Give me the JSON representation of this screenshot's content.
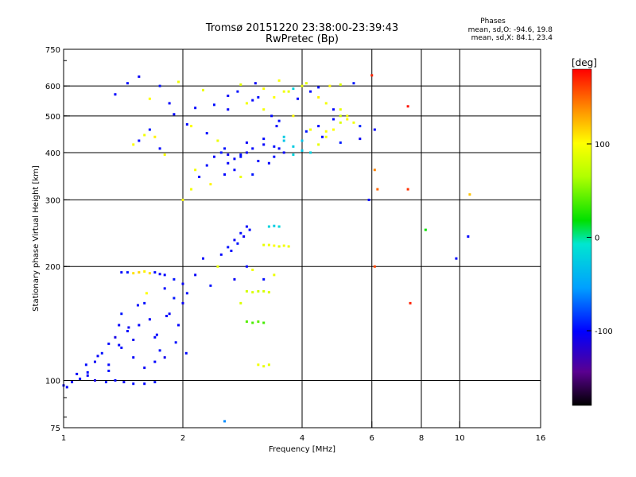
{
  "chart_data": {
    "type": "scatter",
    "title": "Tromsø 20151220 23:38:00-23:39:43",
    "subtitle": "RwPretec (Bp)",
    "xlabel": "Frequency [MHz]",
    "ylabel": "Stationary phase Virtual Height [km]",
    "x_scale": "log",
    "y_scale": "log",
    "xlim": [
      1,
      16
    ],
    "ylim": [
      75,
      750
    ],
    "x_ticks": [
      "1",
      "2",
      "4",
      "6",
      "8",
      "10",
      "16"
    ],
    "x_tick_values": [
      1,
      2,
      4,
      6,
      8,
      10,
      16
    ],
    "x_grid_values": [
      2,
      4,
      6,
      8,
      10
    ],
    "y_ticks": [
      "75",
      "100",
      "200",
      "300",
      "400",
      "500",
      "600",
      "750"
    ],
    "y_tick_values": [
      75,
      100,
      200,
      300,
      400,
      500,
      600,
      750
    ],
    "y_grid_values": [
      100,
      200,
      300,
      400,
      500,
      600
    ],
    "grid": true,
    "stats": {
      "heading": "Phases",
      "line_o": "mean, sd,O: -94.6, 19.8",
      "line_x": "mean, sd,X:  84.1, 23.4"
    },
    "colorbar": {
      "label": "[deg]",
      "min": -180,
      "max": 180,
      "ticks": [
        "100",
        "0",
        "-100"
      ],
      "tick_values": [
        100,
        0,
        -100
      ]
    },
    "series": [
      {
        "name": "",
        "x": [
          1.0,
          1.05,
          1.1,
          1.15,
          1.2,
          1.28,
          1.35,
          1.42,
          1.5,
          1.6,
          1.7
        ],
        "y": [
          97,
          99,
          101,
          103,
          100,
          99,
          100,
          99,
          98,
          98,
          99
        ],
        "phase": [
          -100,
          -105,
          -98,
          -102,
          -110,
          -95,
          -100,
          -104,
          -98,
          -100,
          -96
        ]
      },
      {
        "name": "",
        "x": [
          1.15,
          1.2,
          1.25,
          1.3,
          1.35,
          1.38,
          1.4,
          1.45,
          1.5,
          1.55,
          1.6,
          1.65,
          1.7,
          1.75,
          1.8,
          1.3,
          1.4,
          1.5,
          1.6,
          1.7
        ],
        "y": [
          105,
          112,
          118,
          125,
          130,
          140,
          150,
          135,
          128,
          140,
          160,
          145,
          130,
          120,
          115,
          110,
          122,
          115,
          108,
          112
        ],
        "phase": [
          -98,
          -104,
          -96,
          -100,
          -110,
          -102,
          -95,
          -99,
          -105,
          -101,
          -97,
          -103,
          -100,
          -96,
          -108,
          -100,
          -98,
          -102,
          -104,
          -100
        ]
      },
      {
        "name": "",
        "x": [
          1.4,
          1.45,
          1.5,
          1.55,
          1.6,
          1.65,
          1.7,
          1.75,
          1.8,
          1.9,
          2.0
        ],
        "y": [
          193,
          193,
          192,
          193,
          194,
          192,
          193,
          191,
          190,
          185,
          180
        ],
        "phase": [
          -100,
          -95,
          110,
          115,
          105,
          112,
          -98,
          -102,
          -100,
          -96,
          -104
        ]
      },
      {
        "name": "",
        "x": [
          1.8,
          1.9,
          2.0,
          2.05,
          1.85,
          1.95
        ],
        "y": [
          175,
          165,
          160,
          170,
          150,
          140
        ],
        "phase": [
          -100,
          -95,
          -105,
          -98,
          -102,
          -100
        ]
      },
      {
        "name": "",
        "x": [
          2.5,
          2.6,
          2.7,
          2.8,
          2.9,
          2.65,
          2.75,
          2.85,
          2.95
        ],
        "y": [
          215,
          225,
          235,
          245,
          255,
          220,
          230,
          240,
          250
        ],
        "phase": [
          -100,
          -96,
          -104,
          -98,
          -102,
          -100,
          -95,
          -105,
          -99
        ]
      },
      {
        "name": "",
        "x": [
          3.2,
          3.3,
          3.4,
          3.5,
          3.6,
          3.7,
          3.3,
          3.4,
          3.5
        ],
        "y": [
          228,
          228,
          227,
          226,
          227,
          226,
          255,
          256,
          255
        ],
        "phase": [
          90,
          95,
          100,
          88,
          96,
          92,
          -20,
          -25,
          -18
        ]
      },
      {
        "name": "",
        "x": [
          2.9,
          3.0,
          3.1,
          3.2,
          3.3,
          2.9,
          3.0,
          3.1,
          3.2,
          3.1,
          3.2,
          3.3
        ],
        "y": [
          172,
          171,
          172,
          172,
          171,
          143,
          142,
          143,
          142,
          110,
          109,
          110
        ],
        "phase": [
          80,
          85,
          78,
          82,
          84,
          40,
          38,
          42,
          36,
          95,
          90,
          88
        ]
      },
      {
        "name": "",
        "x": [
          1.5,
          1.55,
          1.6,
          1.65,
          1.7,
          1.75,
          1.8
        ],
        "y": [
          420,
          430,
          445,
          460,
          440,
          410,
          395
        ],
        "phase": [
          100,
          -100,
          95,
          -95,
          105,
          -100,
          98
        ]
      },
      {
        "name": "",
        "x": [
          2.0,
          2.1,
          2.2,
          2.3,
          2.4,
          2.5,
          2.6,
          2.7,
          2.8,
          2.9,
          3.0,
          3.2,
          3.4,
          3.6
        ],
        "y": [
          300,
          320,
          345,
          370,
          390,
          400,
          395,
          385,
          390,
          400,
          410,
          420,
          415,
          400
        ],
        "phase": [
          100,
          95,
          -100,
          -98,
          -102,
          -95,
          -105,
          -100,
          -96,
          -104,
          -99,
          -101,
          -97,
          -103
        ]
      },
      {
        "name": "",
        "x": [
          3.4,
          3.6,
          3.8,
          4.0,
          4.2,
          4.4,
          4.6,
          4.8,
          5.0,
          5.2,
          5.4,
          5.6
        ],
        "y": [
          560,
          580,
          590,
          600,
          580,
          560,
          540,
          520,
          500,
          490,
          480,
          470
        ],
        "phase": [
          100,
          95,
          -20,
          90,
          -98,
          105,
          96,
          -100,
          80,
          102,
          94,
          -90
        ]
      },
      {
        "name": "",
        "x": [
          3.6,
          3.8,
          4.0,
          4.2,
          4.4,
          4.6,
          4.8,
          5.0,
          5.2
        ],
        "y": [
          430,
          415,
          405,
          400,
          420,
          440,
          460,
          480,
          500
        ],
        "phase": [
          -30,
          -25,
          -28,
          -22,
          90,
          95,
          100,
          85,
          92
        ]
      },
      {
        "name": "",
        "x": [
          6.0,
          6.1,
          6.1,
          6.2,
          6.1,
          7.4,
          7.4,
          7.5,
          8.2,
          10.5,
          9.8,
          10.6
        ],
        "y": [
          640,
          460,
          360,
          320,
          200,
          530,
          320,
          160,
          250,
          240,
          210,
          310
        ],
        "phase": [
          170,
          -100,
          140,
          150,
          160,
          175,
          165,
          170,
          20,
          -100,
          -100,
          120
        ]
      },
      {
        "name": "",
        "x": [
          1.02,
          1.08,
          1.14,
          1.22,
          1.3,
          1.38,
          1.46,
          1.54,
          1.62,
          1.72,
          1.82,
          1.92,
          2.04,
          2.15,
          2.25,
          2.35,
          2.45,
          2.55,
          2.7,
          2.8,
          2.9,
          3.0,
          3.2,
          3.4
        ],
        "y": [
          96,
          104,
          110,
          116,
          106,
          124,
          138,
          158,
          170,
          132,
          148,
          126,
          118,
          190,
          210,
          178,
          200,
          78,
          185,
          160,
          200,
          196,
          185,
          190
        ],
        "phase": [
          -100,
          -104,
          -98,
          -102,
          -96,
          -100,
          -105,
          -98,
          100,
          -100,
          -102,
          -97,
          -99,
          -103,
          -101,
          -96,
          90,
          -60,
          -104,
          85,
          -100,
          95,
          -98,
          92
        ]
      },
      {
        "name": "",
        "x": [
          1.9,
          2.1,
          2.3,
          2.45,
          2.6,
          2.75,
          2.9,
          3.05,
          3.2,
          3.35,
          3.5,
          3.7,
          3.9,
          4.1,
          4.4,
          4.7,
          5.0,
          5.4,
          2.15,
          2.35,
          2.55,
          2.8,
          3.1,
          3.45
        ],
        "y": [
          505,
          470,
          450,
          430,
          520,
          580,
          540,
          610,
          590,
          500,
          620,
          580,
          555,
          610,
          595,
          600,
          605,
          610,
          360,
          330,
          350,
          345,
          560,
          470
        ],
        "phase": [
          -100,
          100,
          -98,
          92,
          -102,
          -96,
          95,
          -104,
          100,
          -99,
          98,
          90,
          -100,
          88,
          -96,
          102,
          85,
          -94,
          96,
          104,
          -100,
          92,
          -98,
          -101
        ]
      },
      {
        "name": "",
        "x": [
          2.55,
          2.6,
          2.7,
          2.8,
          2.9,
          3.0,
          3.1,
          3.2,
          3.3,
          3.4,
          3.5,
          3.6,
          3.8,
          4.0,
          4.2,
          4.4,
          4.6,
          4.8,
          5.0
        ],
        "y": [
          410,
          375,
          360,
          395,
          425,
          350,
          380,
          435,
          375,
          390,
          410,
          440,
          395,
          430,
          460,
          470,
          455,
          490,
          520
        ],
        "phase": [
          -96,
          -102,
          -100,
          -98,
          -104,
          -95,
          -100,
          -99,
          -101,
          -97,
          -103,
          -25,
          -20,
          -30,
          96,
          -100,
          100,
          -98,
          90
        ]
      },
      {
        "name": "",
        "x": [
          1.35,
          1.45,
          1.55,
          1.65,
          1.75,
          1.85,
          1.95,
          2.05,
          2.15,
          2.25,
          2.4,
          2.6,
          2.8,
          3.0,
          3.2,
          3.5,
          3.8,
          4.1,
          4.5,
          5.0,
          5.6,
          5.9
        ],
        "y": [
          570,
          610,
          635,
          555,
          600,
          540,
          615,
          475,
          525,
          585,
          535,
          565,
          605,
          550,
          520,
          485,
          500,
          455,
          440,
          425,
          435,
          300
        ],
        "phase": [
          -100,
          -98,
          -104,
          100,
          -96,
          -102,
          95,
          -99,
          -101,
          92,
          -97,
          -103,
          88,
          -100,
          96,
          -98,
          102,
          -95,
          -100,
          -92,
          -105,
          -100
        ]
      }
    ]
  }
}
